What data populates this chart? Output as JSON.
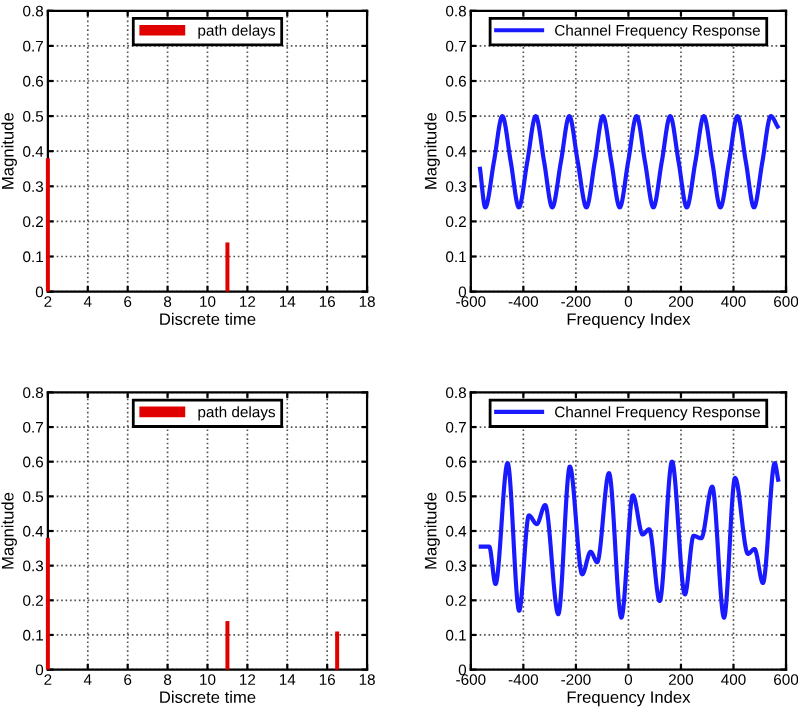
{
  "chart_data": [
    {
      "type": "bar",
      "xlabel": "Discrete time",
      "ylabel": "Magnitude",
      "legend": "top",
      "grid": true,
      "series": [
        {
          "name": "path delays",
          "color": "#e00000",
          "x": [
            2,
            11
          ],
          "values": [
            0.38,
            0.14
          ]
        }
      ],
      "xlim": [
        2,
        18
      ],
      "xticks": [
        2,
        4,
        6,
        8,
        10,
        12,
        14,
        16,
        18
      ],
      "ylim": [
        0,
        0.8
      ],
      "yticks": [
        0,
        0.1,
        0.2,
        0.3,
        0.4,
        0.5,
        0.6,
        0.7,
        0.8
      ]
    },
    {
      "type": "line",
      "xlabel": "Frequency Index",
      "ylabel": "Magnitude",
      "legend": "top",
      "grid": true,
      "series": [
        {
          "name": "Channel Frequency Response",
          "color": "#1a1aff",
          "x": [
            -565,
            -545,
            -512,
            -480,
            -448,
            -417,
            -385,
            -353,
            -321,
            -290,
            -257,
            -225,
            -193,
            -160,
            -128,
            -97,
            -65,
            -33,
            -1,
            31,
            63,
            95,
            127,
            159,
            191,
            222,
            255,
            287,
            319,
            350,
            383,
            415,
            447,
            478,
            510,
            542,
            568
          ],
          "values": [
            0.35,
            0.24,
            0.37,
            0.5,
            0.37,
            0.24,
            0.37,
            0.5,
            0.37,
            0.24,
            0.37,
            0.5,
            0.37,
            0.24,
            0.37,
            0.5,
            0.37,
            0.24,
            0.37,
            0.5,
            0.37,
            0.24,
            0.37,
            0.5,
            0.37,
            0.24,
            0.37,
            0.5,
            0.37,
            0.24,
            0.37,
            0.5,
            0.37,
            0.24,
            0.37,
            0.5,
            0.47
          ]
        }
      ],
      "xlim": [
        -600,
        600
      ],
      "xticks": [
        -600,
        -400,
        -200,
        0,
        200,
        400,
        600
      ],
      "ylim": [
        0,
        0.8
      ],
      "yticks": [
        0,
        0.1,
        0.2,
        0.3,
        0.4,
        0.5,
        0.6,
        0.7,
        0.8
      ]
    },
    {
      "type": "bar",
      "xlabel": "Discrete time",
      "ylabel": "Magnitude",
      "legend": "top",
      "grid": true,
      "series": [
        {
          "name": "path delays",
          "color": "#e00000",
          "x": [
            2,
            11,
            16.5
          ],
          "values": [
            0.38,
            0.14,
            0.11
          ]
        }
      ],
      "xlim": [
        2,
        18
      ],
      "xticks": [
        2,
        4,
        6,
        8,
        10,
        12,
        14,
        16,
        18
      ],
      "ylim": [
        0,
        0.8
      ],
      "yticks": [
        0,
        0.1,
        0.2,
        0.3,
        0.4,
        0.5,
        0.6,
        0.7,
        0.8
      ]
    },
    {
      "type": "line",
      "xlabel": "Frequency Index",
      "ylabel": "Magnitude",
      "legend": "top",
      "grid": true,
      "series": [
        {
          "name": "Channel Frequency Response",
          "color": "#1a1aff",
          "x": [
            -562,
            -530,
            -506,
            -460,
            -416,
            -379,
            -349,
            -317,
            -267,
            -223,
            -176,
            -144,
            -119,
            -74,
            -27,
            17,
            54,
            79,
            119,
            166,
            215,
            248,
            277,
            319,
            364,
            406,
            455,
            480,
            512,
            557,
            570
          ],
          "values": [
            0.355,
            0.355,
            0.247,
            0.596,
            0.17,
            0.445,
            0.42,
            0.475,
            0.16,
            0.586,
            0.275,
            0.34,
            0.31,
            0.567,
            0.15,
            0.503,
            0.39,
            0.405,
            0.198,
            0.6,
            0.217,
            0.386,
            0.379,
            0.528,
            0.15,
            0.553,
            0.334,
            0.348,
            0.25,
            0.596,
            0.548
          ]
        }
      ],
      "xlim": [
        -600,
        600
      ],
      "xticks": [
        -600,
        -400,
        -200,
        0,
        200,
        400,
        600
      ],
      "ylim": [
        0,
        0.8
      ],
      "yticks": [
        0,
        0.1,
        0.2,
        0.3,
        0.4,
        0.5,
        0.6,
        0.7,
        0.8
      ]
    }
  ]
}
